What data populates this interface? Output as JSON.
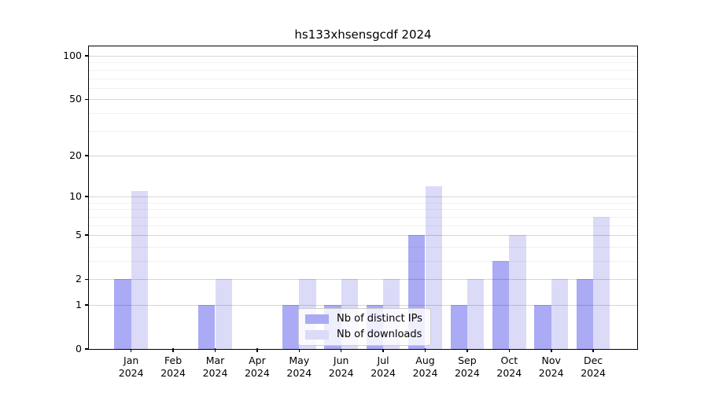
{
  "title": "hs133xhsensgcdf 2024",
  "colors": {
    "distinct_ips_bar": "#aaaaf5",
    "downloads_bar": "#dbdbf8",
    "grid_major": "#d6d6d6",
    "grid_minor": "#f2f2f2",
    "axis": "#000000",
    "legend_border": "#cccccc"
  },
  "chart_data": {
    "type": "bar",
    "title": "hs133xhsensgcdf 2024",
    "categories": [
      "Jan 2024",
      "Feb 2024",
      "Mar 2024",
      "Apr 2024",
      "May 2024",
      "Jun 2024",
      "Jul 2024",
      "Aug 2024",
      "Sep 2024",
      "Oct 2024",
      "Nov 2024",
      "Dec 2024"
    ],
    "series": [
      {
        "name": "Nb of distinct IPs",
        "color": "#aaaaf5",
        "values": [
          2,
          0,
          1,
          0,
          1,
          1,
          1,
          5,
          1,
          3,
          1,
          2
        ]
      },
      {
        "name": "Nb of downloads",
        "color": "#dbdbf8",
        "values": [
          11,
          0,
          2,
          0,
          2,
          2,
          2,
          12,
          2,
          5,
          2,
          7
        ]
      }
    ],
    "xlabel": "",
    "ylabel": "",
    "yscale": "log1p",
    "y_ticks": [
      0,
      1,
      2,
      5,
      10,
      20,
      50,
      100
    ],
    "y_minor_ticks": [
      3,
      4,
      6,
      7,
      8,
      9,
      30,
      40,
      60,
      70,
      80,
      90
    ],
    "ylim": [
      0,
      116
    ],
    "grid": "on",
    "legend_position": "lower center"
  }
}
